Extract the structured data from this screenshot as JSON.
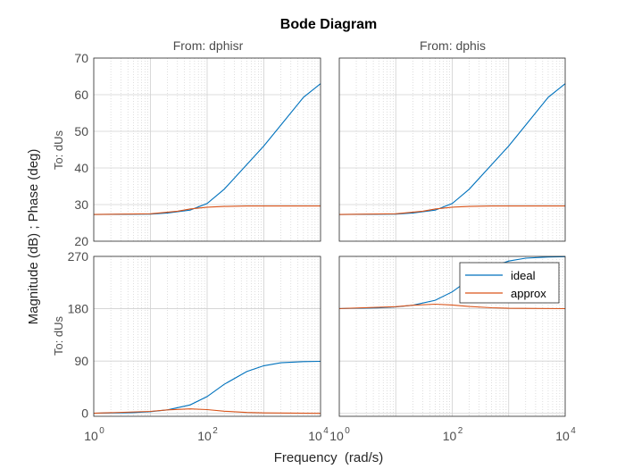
{
  "chart_data": {
    "type": "line",
    "title": "Bode Diagram",
    "xlabel": "Frequency  (rad/s)",
    "ylabel": "Magnitude (dB) ; Phase (deg)",
    "x_scale": "log",
    "xlim": [
      1,
      10000
    ],
    "x_ticks": [
      {
        "base": "10",
        "exp": "0",
        "value": 1
      },
      {
        "base": "10",
        "exp": "2",
        "value": 100
      },
      {
        "base": "10",
        "exp": "4",
        "value": 10000
      }
    ],
    "grid": true,
    "columns": [
      {
        "label": "From: dphisr"
      },
      {
        "label": "From: dphis"
      }
    ],
    "rows": [
      {
        "label": "To: dUs",
        "quantity": "magnitude_db",
        "ylim": [
          20,
          70
        ],
        "y_ticks": [
          "20",
          "30",
          "40",
          "50",
          "60",
          "70"
        ]
      },
      {
        "label": "To: dUs",
        "quantity": "phase_deg",
        "ylim": [
          -5,
          270
        ],
        "y_ticks": [
          "0",
          "90",
          "180",
          "270"
        ]
      }
    ],
    "legend": {
      "location": "top-right of lower-right panel",
      "entries": [
        "ideal",
        "approx"
      ]
    },
    "series_colors": {
      "ideal": "#0072BD",
      "approx": "#D95319"
    },
    "panels": [
      {
        "row": 0,
        "col": 0,
        "series": [
          {
            "name": "ideal",
            "x": [
              1,
              10,
              20,
              50,
              100,
              200,
              500,
              1000,
              2000,
              5000,
              10000
            ],
            "y": [
              27.3,
              27.4,
              27.7,
              28.5,
              30.3,
              34.2,
              40.9,
              46.0,
              51.7,
              59.3,
              63.0
            ]
          },
          {
            "name": "approx",
            "x": [
              1,
              10,
              30,
              50,
              100,
              200,
              500,
              1000,
              10000
            ],
            "y": [
              27.3,
              27.5,
              28.2,
              28.8,
              29.3,
              29.5,
              29.6,
              29.6,
              29.6
            ]
          }
        ]
      },
      {
        "row": 0,
        "col": 1,
        "series": [
          {
            "name": "ideal",
            "x": [
              1,
              10,
              20,
              50,
              100,
              200,
              500,
              1000,
              2000,
              5000,
              10000
            ],
            "y": [
              27.3,
              27.4,
              27.7,
              28.5,
              30.3,
              34.2,
              40.9,
              46.0,
              51.7,
              59.3,
              63.0
            ]
          },
          {
            "name": "approx",
            "x": [
              1,
              10,
              30,
              50,
              100,
              200,
              500,
              1000,
              10000
            ],
            "y": [
              27.3,
              27.5,
              28.2,
              28.8,
              29.3,
              29.5,
              29.6,
              29.6,
              29.6
            ]
          }
        ]
      },
      {
        "row": 1,
        "col": 0,
        "series": [
          {
            "name": "ideal",
            "x": [
              1,
              5,
              10,
              20,
              50,
              100,
              200,
              500,
              1000,
              2000,
              5000,
              10000
            ],
            "y": [
              0.3,
              1.5,
              3,
              6,
              14.5,
              29,
              50,
              72,
              82,
              87,
              89,
              89.5
            ]
          },
          {
            "name": "approx",
            "x": [
              1,
              10,
              20,
              50,
              100,
              200,
              500,
              1000,
              10000
            ],
            "y": [
              0.3,
              3.5,
              6,
              7.8,
              6.5,
              3.8,
              1.6,
              0.8,
              0.1
            ]
          }
        ]
      },
      {
        "row": 1,
        "col": 1,
        "series": [
          {
            "name": "ideal",
            "x": [
              1,
              5,
              10,
              20,
              50,
              100,
              200,
              500,
              1000,
              2000,
              5000,
              10000
            ],
            "y": [
              180.3,
              181.5,
              183,
              186,
              194.5,
              209,
              230,
              252,
              262,
              267,
              269,
              269.5
            ]
          },
          {
            "name": "approx",
            "x": [
              1,
              10,
              20,
              50,
              100,
              200,
              500,
              1000,
              10000
            ],
            "y": [
              180.3,
              183.5,
              186,
              187.8,
              186.5,
              183.8,
              181.6,
              180.8,
              180.1
            ]
          }
        ]
      }
    ]
  }
}
